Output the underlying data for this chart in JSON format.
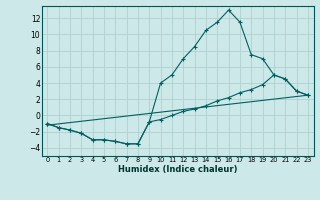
{
  "xlabel": "Humidex (Indice chaleur)",
  "ylabel": "",
  "bg_color": "#cde8e8",
  "grid_color": "#b0d0d0",
  "line_color": "#006060",
  "xlim": [
    -0.5,
    23.5
  ],
  "ylim": [
    -5,
    13.5
  ],
  "xticks": [
    0,
    1,
    2,
    3,
    4,
    5,
    6,
    7,
    8,
    9,
    10,
    11,
    12,
    13,
    14,
    15,
    16,
    17,
    18,
    19,
    20,
    21,
    22,
    23
  ],
  "yticks": [
    -4,
    -2,
    0,
    2,
    4,
    6,
    8,
    10,
    12
  ],
  "line1_x": [
    0,
    1,
    2,
    3,
    4,
    5,
    6,
    7,
    8,
    9,
    10,
    11,
    12,
    13,
    14,
    15,
    16,
    17,
    18,
    19,
    20,
    21,
    22,
    23
  ],
  "line1_y": [
    -1,
    -1.5,
    -1.8,
    -2.2,
    -3.0,
    -3.0,
    -3.2,
    -3.5,
    -3.5,
    -0.8,
    4.0,
    5.0,
    7.0,
    8.5,
    10.5,
    11.5,
    13.0,
    11.5,
    7.5,
    7.0,
    5.0,
    4.5,
    3.0,
    2.5
  ],
  "line2_x": [
    0,
    1,
    2,
    3,
    4,
    5,
    6,
    7,
    8,
    9,
    10,
    11,
    12,
    13,
    14,
    15,
    16,
    17,
    18,
    19,
    20,
    21,
    22,
    23
  ],
  "line2_y": [
    -1,
    -1.5,
    -1.8,
    -2.2,
    -3.0,
    -3.0,
    -3.2,
    -3.5,
    -3.5,
    -0.8,
    -0.5,
    0.0,
    0.5,
    0.8,
    1.2,
    1.8,
    2.2,
    2.8,
    3.2,
    3.8,
    5.0,
    4.5,
    3.0,
    2.5
  ],
  "line3_x": [
    0,
    23
  ],
  "line3_y": [
    -1.2,
    2.5
  ]
}
